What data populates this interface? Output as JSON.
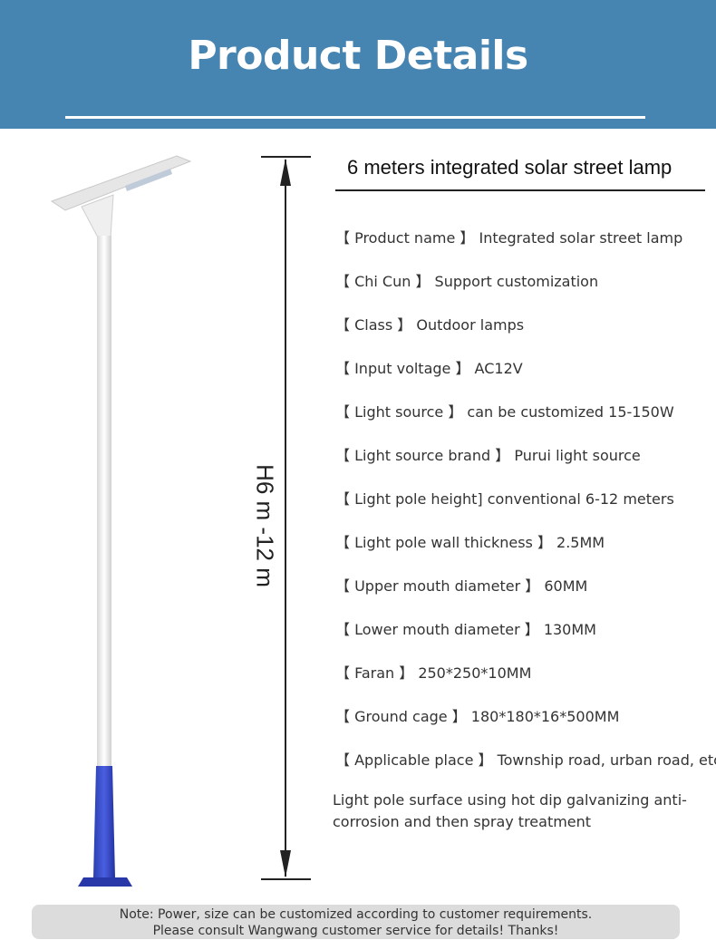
{
  "header": {
    "title": "Product Details"
  },
  "lamp": {
    "height_label": "H6 m -12 m"
  },
  "spec": {
    "title": "6 meters integrated solar street lamp",
    "items": [
      "【 Product name 】 Integrated solar street lamp",
      "【 Chi Cun 】 Support customization",
      "【 Class 】 Outdoor lamps",
      "【 Input voltage 】 AC12V",
      "【 Light source 】 can be customized 15-150W",
      "【 Light source brand 】 Purui light source",
      "【 Light pole height] conventional 6-12 meters",
      "【 Light pole wall thickness 】 2.5MM",
      "【 Upper mouth diameter 】 60MM",
      "【 Lower mouth diameter 】 130MM",
      "【 Faran 】 250*250*10MM",
      "【 Ground cage 】 180*180*16*500MM",
      "【 Applicable place 】 Township road, urban road, etc"
    ],
    "note": [
      "Light pole surface using hot dip galvanizing anti-",
      "corrosion and then spray treatment"
    ]
  },
  "footer": {
    "lines": [
      "Note: Power, size can be customized according to customer requirements.",
      "Please consult Wangwang customer service for details! Thanks!"
    ]
  }
}
